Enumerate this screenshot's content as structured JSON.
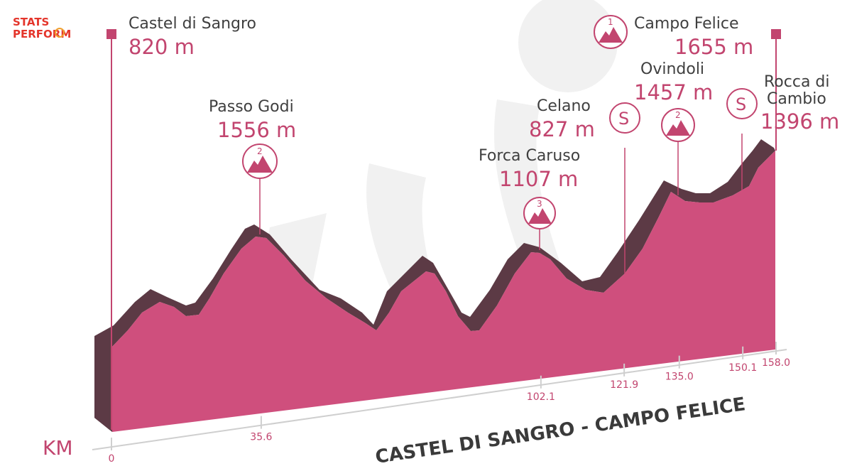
{
  "brand": {
    "line1": "STATS",
    "line2": "PERFORM"
  },
  "stage_title": "CASTEL DI SANGRO - CAMPO FELICE",
  "km_label": "KM",
  "colors": {
    "profile_front": "#cf4f7d",
    "profile_top": "#5c3a45",
    "accent": "#c2456f",
    "text": "#3f3f3f"
  },
  "km_ticks": [
    {
      "km": 0,
      "label": "0"
    },
    {
      "km": 35.6,
      "label": "35.6"
    },
    {
      "km": 102.1,
      "label": "102.1"
    },
    {
      "km": 121.9,
      "label": "121.9"
    },
    {
      "km": 135.0,
      "label": "135.0"
    },
    {
      "km": 150.1,
      "label": "150.1"
    },
    {
      "km": 158.0,
      "label": "158.0"
    }
  ],
  "points": {
    "start": {
      "name": "Castel di Sangro",
      "altitude": "820 m"
    },
    "finish": {
      "name": "Campo Felice",
      "altitude": "1655 m",
      "category": "1"
    },
    "passo": {
      "name": "Passo Godi",
      "altitude": "1556 m",
      "category": "2"
    },
    "forca": {
      "name": "Forca Caruso",
      "altitude": "1107 m",
      "category": "3"
    },
    "celano": {
      "name": "Celano",
      "altitude": "827 m",
      "sprint": "S"
    },
    "ovindoli": {
      "name": "Ovindoli",
      "altitude": "1457 m",
      "category": "2"
    },
    "rocca": {
      "name_line1": "Rocca di",
      "name_line2": "Cambio",
      "altitude": "1396 m",
      "sprint": "S"
    }
  }
}
